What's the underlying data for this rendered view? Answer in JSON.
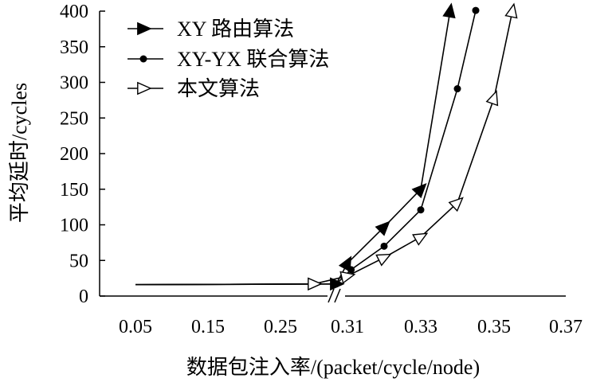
{
  "chart_data": {
    "type": "line",
    "title": "",
    "xlabel": "数据包注入率/(packet/cycle/node)",
    "ylabel": "平均延时/cycles",
    "x_ticks": [
      "0.05",
      "0.15",
      "0.25",
      "0.31",
      "0.33",
      "0.35",
      "0.37"
    ],
    "x_axis_break": "between 0.25 and 0.31",
    "y_ticks": [
      0,
      50,
      100,
      150,
      200,
      250,
      300,
      350,
      400
    ],
    "ylim": [
      0,
      400
    ],
    "grid": false,
    "legend_position": "top-left",
    "series": [
      {
        "name": "XY 路由算法",
        "marker": "filled-arrow",
        "points": [
          {
            "x": 0.05,
            "y": 16
          },
          {
            "x": 0.3,
            "y": 17
          },
          {
            "x": 0.31,
            "y": 46
          },
          {
            "x": 0.32,
            "y": 97
          },
          {
            "x": 0.33,
            "y": 150
          },
          {
            "x": 0.338,
            "y": 400
          }
        ]
      },
      {
        "name": "XY-YX 联合算法",
        "marker": "filled-circle",
        "points": [
          {
            "x": 0.05,
            "y": 16
          },
          {
            "x": 0.3,
            "y": 17
          },
          {
            "x": 0.311,
            "y": 37
          },
          {
            "x": 0.32,
            "y": 70
          },
          {
            "x": 0.33,
            "y": 121
          },
          {
            "x": 0.34,
            "y": 291
          },
          {
            "x": 0.345,
            "y": 401
          }
        ]
      },
      {
        "name": "本文算法",
        "marker": "open-arrow",
        "points": [
          {
            "x": 0.05,
            "y": 16
          },
          {
            "x": 0.28,
            "y": 17
          },
          {
            "x": 0.31,
            "y": 28
          },
          {
            "x": 0.32,
            "y": 54
          },
          {
            "x": 0.33,
            "y": 83
          },
          {
            "x": 0.34,
            "y": 131
          },
          {
            "x": 0.35,
            "y": 278
          },
          {
            "x": 0.355,
            "y": 400
          }
        ]
      }
    ]
  }
}
